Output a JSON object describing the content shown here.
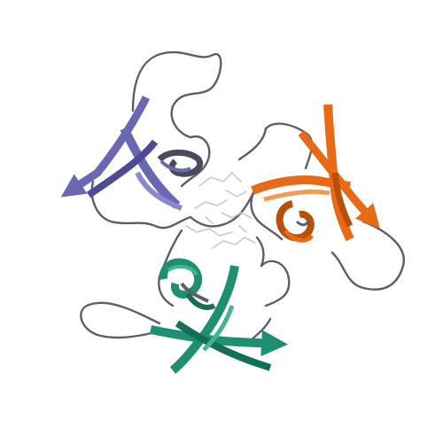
{
  "figure": {
    "subject": "protein-ribbon-structure",
    "background": "#ffffff",
    "chains": [
      {
        "id": "chain-a",
        "color": "#6a67b5",
        "shade": "#4e4a93",
        "highlight": "#8a87cf"
      },
      {
        "id": "chain-b",
        "color": "#e86a16",
        "shade": "#b8500d",
        "highlight": "#f59a55"
      },
      {
        "id": "chain-c",
        "color": "#1f8f72",
        "shade": "#137057",
        "highlight": "#45b394"
      }
    ],
    "loop_color": "#5d5d6e",
    "ligand_color": "#c9c9c9"
  }
}
